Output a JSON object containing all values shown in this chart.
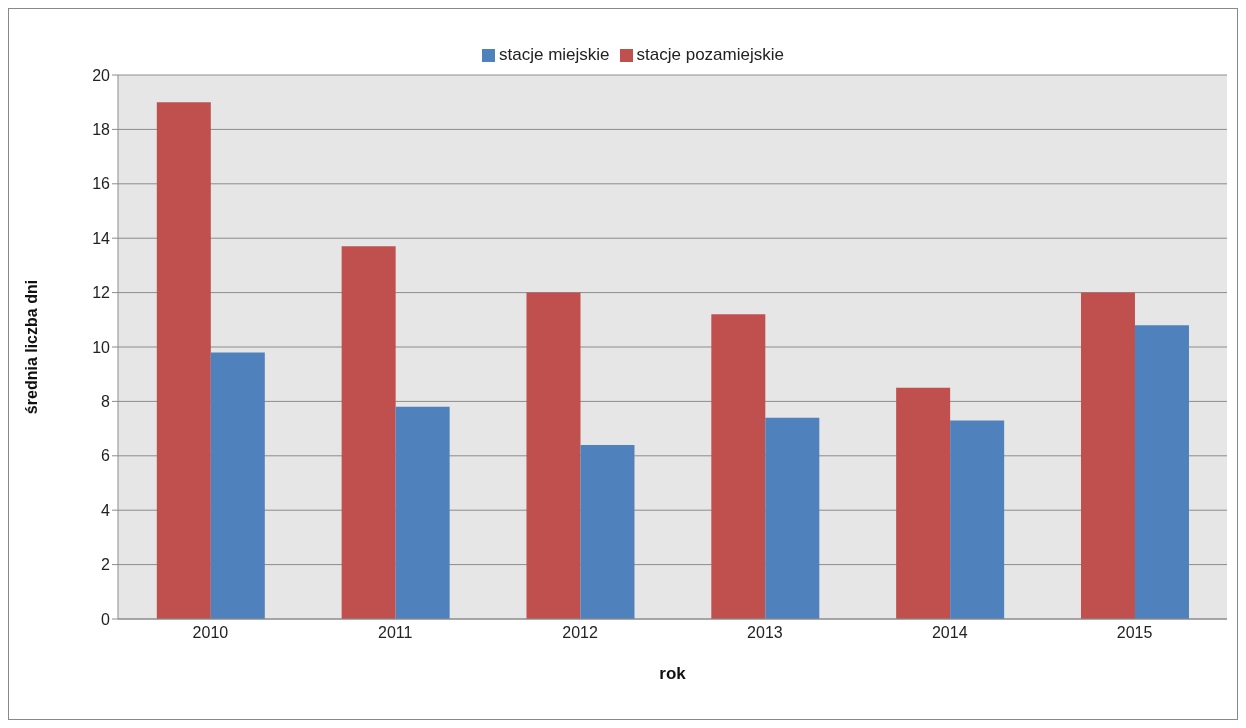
{
  "chart_data": {
    "type": "bar",
    "xlabel": "rok",
    "ylabel": "średnia liczba dni",
    "categories": [
      "2010",
      "2011",
      "2012",
      "2013",
      "2014",
      "2015"
    ],
    "series": [
      {
        "name": "stacje pozamiejskie",
        "color": "#c0504d",
        "values": [
          19.0,
          13.7,
          12.0,
          11.2,
          8.5,
          12.0
        ]
      },
      {
        "name": "stacje miejskie",
        "color": "#4f81bd",
        "values": [
          9.8,
          7.8,
          6.4,
          7.4,
          7.3,
          10.8
        ]
      }
    ],
    "ylim": [
      0,
      20
    ],
    "yticks": [
      0,
      2,
      4,
      6,
      8,
      10,
      12,
      14,
      16,
      18,
      20
    ],
    "grid": "y",
    "legend": "top"
  }
}
